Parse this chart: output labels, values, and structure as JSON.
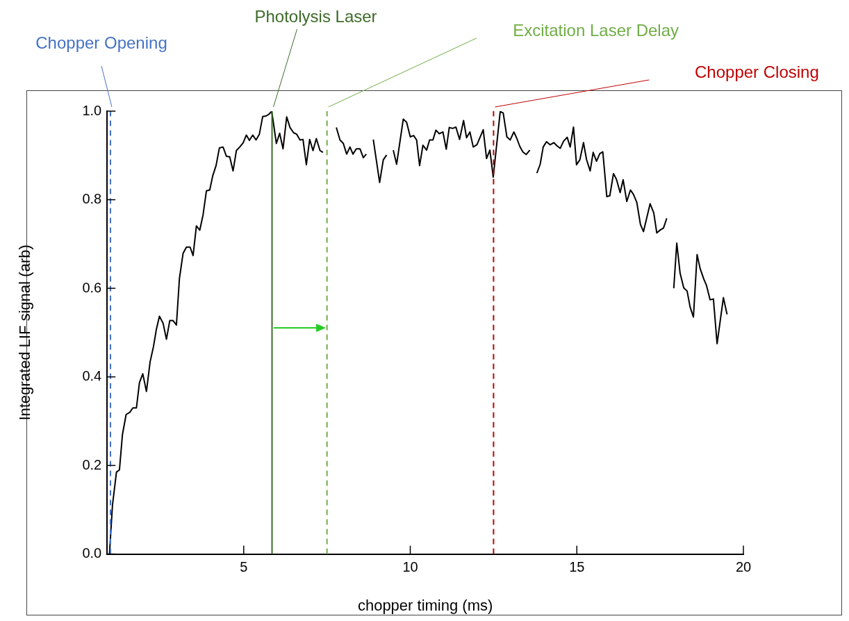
{
  "chart_data": {
    "type": "line",
    "xlabel": "chopper timing (ms)",
    "ylabel": "Integrated LIF signal (arb)",
    "xlim": [
      0.9,
      20
    ],
    "xticks": [
      5,
      10,
      15,
      20
    ],
    "ylim": [
      0,
      1
    ],
    "yticks": [
      {
        "value": 0,
        "label": "0.0"
      },
      {
        "value": 0.2,
        "label": "0.2"
      },
      {
        "value": 0.4,
        "label": "0.4"
      },
      {
        "value": 0.6,
        "label": "0.6"
      },
      {
        "value": 0.8,
        "label": "0.8"
      },
      {
        "value": 1,
        "label": "1.0"
      }
    ],
    "marker": "none",
    "series": [
      {
        "color": "#000000",
        "x": [
          0.97,
          1.06,
          1.18,
          1.27,
          1.36,
          1.47,
          1.58,
          1.67,
          1.78,
          1.87,
          1.97,
          2.08,
          2.19,
          2.29,
          2.38,
          2.47,
          2.58,
          2.68,
          2.78,
          2.88,
          2.98,
          3.07,
          3.18,
          3.28,
          3.39,
          3.48,
          3.58,
          3.68,
          3.78,
          3.88,
          3.98,
          4.07,
          4.17,
          4.27,
          4.38,
          4.48,
          4.58,
          4.68,
          4.78,
          4.88,
          4.98,
          5.08,
          5.17,
          5.27,
          5.37,
          5.47,
          5.57,
          5.67,
          5.76,
          5.84,
          5.9,
          5.98,
          6.08,
          6.18,
          6.29,
          6.39,
          6.5,
          6.59,
          6.69,
          6.78,
          6.88,
          6.98,
          7.08,
          7.18,
          7.29,
          7.38,
          7.58,
          7.78,
          7.89,
          7.99,
          8.09,
          8.19,
          8.28,
          8.38,
          8.49,
          8.59,
          8.68,
          8.78,
          8.89,
          9.08,
          9.19,
          9.29,
          9.39,
          9.49,
          9.59,
          9.79,
          9.89,
          10.0,
          10.1,
          10.19,
          10.28,
          10.38,
          10.49,
          10.58,
          10.68,
          10.77,
          10.87,
          10.98,
          11.08,
          11.17,
          11.27,
          11.37,
          11.48,
          11.6,
          11.69,
          11.79,
          11.89,
          12.0,
          12.19,
          12.29,
          12.39,
          12.49,
          12.7,
          12.79,
          12.9,
          13.0,
          13.11,
          13.19,
          13.29,
          13.38,
          13.48,
          13.59,
          13.7,
          13.8,
          13.9,
          13.99,
          14.09,
          14.2,
          14.31,
          14.4,
          14.5,
          14.6,
          14.71,
          14.8,
          14.9,
          14.99,
          15.09,
          15.2,
          15.29,
          15.4,
          15.49,
          15.59,
          15.69,
          15.78,
          15.9,
          15.99,
          16.1,
          16.19,
          16.3,
          16.39,
          16.5,
          16.61,
          16.7,
          16.8,
          16.91,
          17.0,
          17.2,
          17.31,
          17.4,
          17.51,
          17.6,
          17.7,
          17.8,
          17.91,
          18.0,
          18.1,
          18.21,
          18.31,
          18.4,
          18.5,
          18.61,
          18.7,
          18.81,
          18.89,
          19.0,
          19.1,
          19.21,
          19.4,
          19.51
        ],
        "values": [
          0,
          0.11,
          0.185,
          0.19,
          0.27,
          0.315,
          0.32,
          0.33,
          0.33,
          0.387,
          0.407,
          0.367,
          0.434,
          0.468,
          0.508,
          0.537,
          0.521,
          0.485,
          0.527,
          0.527,
          0.517,
          0.622,
          0.679,
          0.693,
          0.693,
          0.674,
          0.741,
          0.731,
          0.766,
          0.82,
          0.822,
          0.854,
          0.877,
          0.917,
          0.919,
          0.898,
          0.897,
          0.865,
          0.911,
          0.919,
          0.928,
          0.946,
          0.934,
          0.946,
          0.935,
          0.948,
          0.988,
          0.989,
          0.993,
          1.0,
          0.969,
          0.927,
          0.95,
          0.915,
          0.987,
          0.963,
          0.951,
          0.948,
          0.935,
          0.936,
          0.879,
          0.936,
          0.911,
          0.938,
          0.911,
          0.907,
          null,
          0.963,
          0.935,
          0.927,
          0.903,
          0.919,
          0.903,
          0.915,
          0.915,
          0.895,
          0.903,
          null,
          0.936,
          0.839,
          0.89,
          0.901,
          null,
          0.912,
          0.88,
          0.982,
          0.975,
          0.942,
          0.945,
          0.935,
          0.877,
          0.923,
          0.912,
          0.935,
          0.935,
          0.957,
          0.949,
          0.953,
          0.914,
          0.963,
          0.961,
          0.964,
          0.936,
          0.979,
          0.94,
          0.953,
          0.919,
          0.924,
          0.958,
          0.893,
          0.912,
          0.851,
          0.999,
          0.996,
          0.942,
          0.935,
          0.953,
          0.94,
          0.92,
          0.908,
          0.902,
          0.912,
          null,
          0.86,
          0.88,
          0.919,
          0.931,
          0.924,
          0.929,
          0.922,
          0.916,
          0.932,
          0.941,
          0.919,
          0.964,
          0.879,
          0.89,
          0.929,
          0.891,
          0.865,
          0.907,
          0.887,
          0.904,
          0.908,
          0.807,
          0.809,
          0.859,
          0.846,
          0.816,
          0.845,
          0.796,
          0.822,
          0.812,
          0.794,
          0.744,
          0.728,
          0.791,
          0.77,
          0.725,
          0.732,
          0.736,
          0.758,
          null,
          0.6,
          0.702,
          0.634,
          0.601,
          0.594,
          0.558,
          0.535,
          0.676,
          0.645,
          0.621,
          0.607,
          0.574,
          0.576,
          0.475,
          0.579,
          0.541
        ]
      }
    ],
    "ref_lines": [
      {
        "axis": "x",
        "value": 1.0,
        "label": "Chopper Opening",
        "color": "#4472c4",
        "line_style": "dashed"
      },
      {
        "axis": "x",
        "value": 5.85,
        "label": "Photolysis Laser",
        "color": "#3d6b2a",
        "line_style": "solid"
      },
      {
        "axis": "x",
        "value": 7.5,
        "label": "Excitation Laser Delay",
        "color": "#70ad47",
        "line_style": "dashed"
      },
      {
        "axis": "x",
        "value": 12.5,
        "label": "Chopper Closing",
        "color": "#c00000",
        "line_style": "dashed"
      }
    ]
  }
}
